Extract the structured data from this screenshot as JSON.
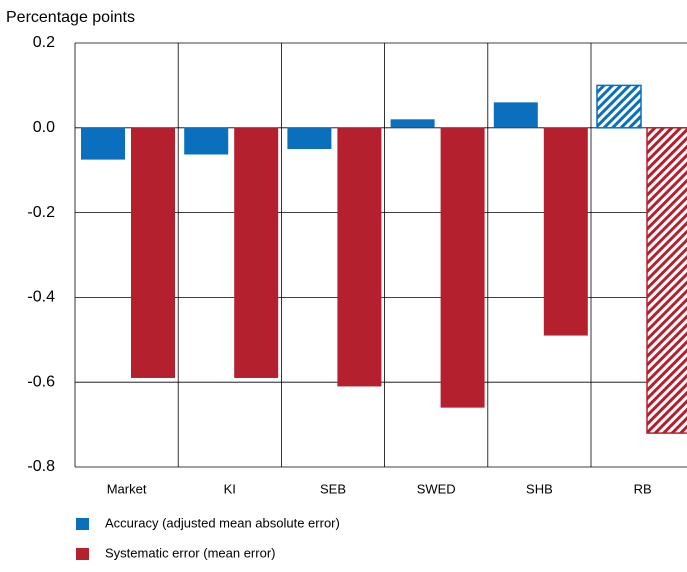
{
  "chart_data": {
    "type": "bar",
    "title": "Percentage points",
    "categories": [
      "Market",
      "KI",
      "SEB",
      "SWED",
      "SHB",
      "RB"
    ],
    "series": [
      {
        "name": "Accuracy (adjusted mean absolute error)",
        "color": "#0a6fbd",
        "values": [
          -0.075,
          -0.063,
          -0.05,
          0.02,
          0.06,
          0.1
        ],
        "hatched": [
          false,
          false,
          false,
          false,
          false,
          true
        ]
      },
      {
        "name": "Systematic error (mean error)",
        "color": "#b5202e",
        "values": [
          -0.59,
          -0.59,
          -0.61,
          -0.66,
          -0.49,
          -0.72
        ],
        "hatched": [
          false,
          false,
          false,
          false,
          false,
          true
        ]
      }
    ],
    "ylim": [
      -0.8,
      0.2
    ],
    "yticks": [
      0.2,
      {
        "value": 0,
        "label": "0.0"
      },
      -0.2,
      -0.4,
      -0.6,
      -0.8
    ],
    "grid": true
  }
}
